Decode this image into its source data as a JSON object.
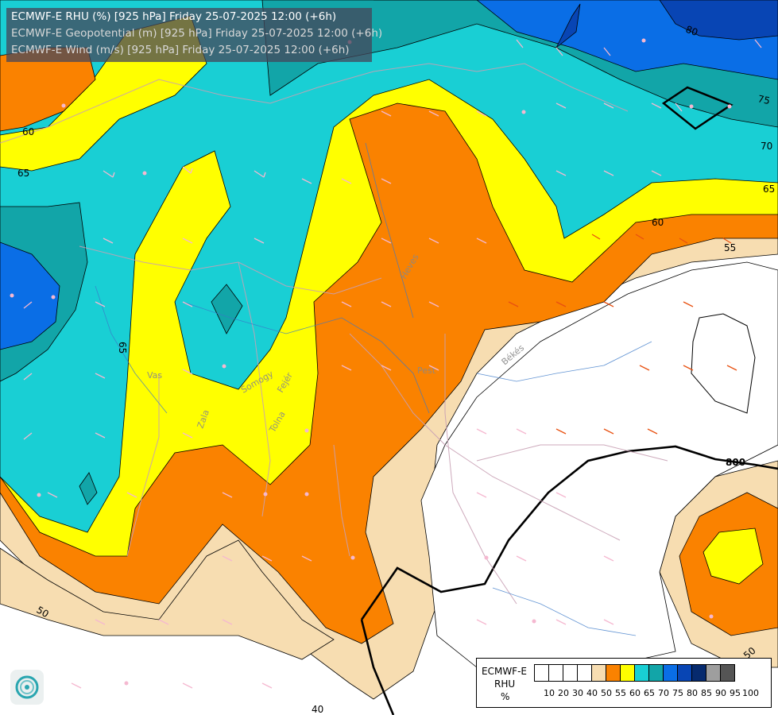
{
  "header": {
    "line1": "ECMWF-E RHU (%) [925 hPa] Friday 25-07-2025 12:00 (+6h)",
    "line2": "ECMWF-E Geopotential (m) [925 hPa] Friday 25-07-2025 12:00 (+6h)",
    "line3": "ECMWF-E Wind (m/s) [925 hPa] Friday 25-07-2025 12:00 (+6h)"
  },
  "legend": {
    "product": "ECMWF-E",
    "variable": "RHU",
    "unit": "%",
    "colors": [
      "#ffffff",
      "#ffffff",
      "#ffffff",
      "#ffffff",
      "#f7ddb1",
      "#fa8200",
      "#ffff00",
      "#19cfd4",
      "#12a5a8",
      "#0a6ee6",
      "#0845b4",
      "#062a6e",
      "#9e9e9e",
      "#555555"
    ],
    "ticks": [
      "10",
      "20",
      "30",
      "40",
      "50",
      "55",
      "60",
      "65",
      "70",
      "75",
      "80",
      "85",
      "90",
      "95",
      "100"
    ]
  },
  "contour_labels": {
    "rhu_80": "80",
    "rhu_75": "75",
    "rhu_70": "70",
    "rhu_65_east": "65",
    "rhu_60_east": "60",
    "rhu_55_east": "55",
    "rhu_60_west": "60",
    "rhu_65_west": "65",
    "rhu_65_vertical": "65",
    "rhu_50": "50",
    "rhu_40": "40",
    "rhu_50_se": "50",
    "geopotential_800": "800"
  },
  "place_labels": {
    "heves": "Heves",
    "pest": "Pest",
    "bekes": "Békés",
    "vas": "Vas",
    "zala": "Zala",
    "somogy": "Somogy",
    "fejer": "Fejér",
    "tolna": "Tolna"
  }
}
